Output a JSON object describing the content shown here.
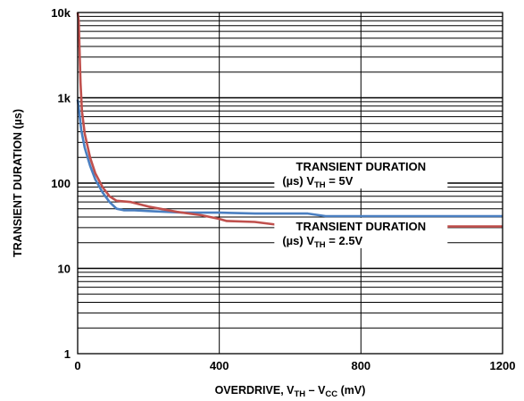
{
  "chart_data": {
    "type": "line",
    "xlabel": {
      "main": "OVERDRIVE, V",
      "sub1": "TH",
      "mid": " – V",
      "sub2": "CC",
      "unit": " (mV)"
    },
    "ylabel": "TRANSIENT DURATION (µs)",
    "x_ticks": [
      {
        "value": 0,
        "label": "0"
      },
      {
        "value": 400,
        "label": "400"
      },
      {
        "value": 800,
        "label": "800"
      },
      {
        "value": 1200,
        "label": "1200"
      }
    ],
    "y_ticks": [
      {
        "value": 1,
        "label": "1"
      },
      {
        "value": 10,
        "label": "10"
      },
      {
        "value": 100,
        "label": "100"
      },
      {
        "value": 1000,
        "label": "1k"
      },
      {
        "value": 10000,
        "label": "10k"
      }
    ],
    "xlim": [
      0,
      1200
    ],
    "ylim": [
      1,
      10000
    ],
    "y_scale": "log",
    "grid": true,
    "series": [
      {
        "color": "#4a7fc1",
        "points": [
          [
            0,
            950
          ],
          [
            5,
            650
          ],
          [
            10,
            420
          ],
          [
            20,
            260
          ],
          [
            35,
            160
          ],
          [
            50,
            110
          ],
          [
            70,
            78
          ],
          [
            90,
            60
          ],
          [
            110,
            50
          ],
          [
            130,
            48
          ],
          [
            160,
            48
          ],
          [
            200,
            47
          ],
          [
            300,
            45
          ],
          [
            400,
            45
          ],
          [
            500,
            44
          ],
          [
            600,
            44
          ],
          [
            650,
            44
          ],
          [
            700,
            41
          ],
          [
            800,
            41
          ],
          [
            900,
            41
          ],
          [
            1000,
            41
          ],
          [
            1100,
            41
          ],
          [
            1200,
            41
          ]
        ]
      },
      {
        "color": "#c0504d",
        "points": [
          [
            0,
            10000
          ],
          [
            3,
            8000
          ],
          [
            5,
            4000
          ],
          [
            8,
            1500
          ],
          [
            12,
            700
          ],
          [
            20,
            380
          ],
          [
            35,
            200
          ],
          [
            50,
            130
          ],
          [
            70,
            90
          ],
          [
            90,
            70
          ],
          [
            110,
            62
          ],
          [
            150,
            60
          ],
          [
            200,
            53
          ],
          [
            280,
            46
          ],
          [
            350,
            42
          ],
          [
            400,
            38
          ],
          [
            420,
            36
          ],
          [
            500,
            35
          ],
          [
            550,
            33
          ],
          [
            600,
            31
          ],
          [
            700,
            31
          ],
          [
            800,
            31
          ],
          [
            900,
            31
          ],
          [
            1000,
            31
          ],
          [
            1100,
            31
          ],
          [
            1200,
            31
          ]
        ]
      }
    ],
    "annotations": [
      {
        "line1": "TRANSIENT DURATION",
        "line2_pre": "(µs) V",
        "line2_sub": "TH",
        "line2_post": " = 5V",
        "anchor_x": 800,
        "anchor_y": 130
      },
      {
        "line1": "TRANSIENT DURATION",
        "line2_pre": "(µs) V",
        "line2_sub": "TH",
        "line2_post": " = 2.5V",
        "anchor_x": 800,
        "anchor_y": 26
      }
    ]
  }
}
